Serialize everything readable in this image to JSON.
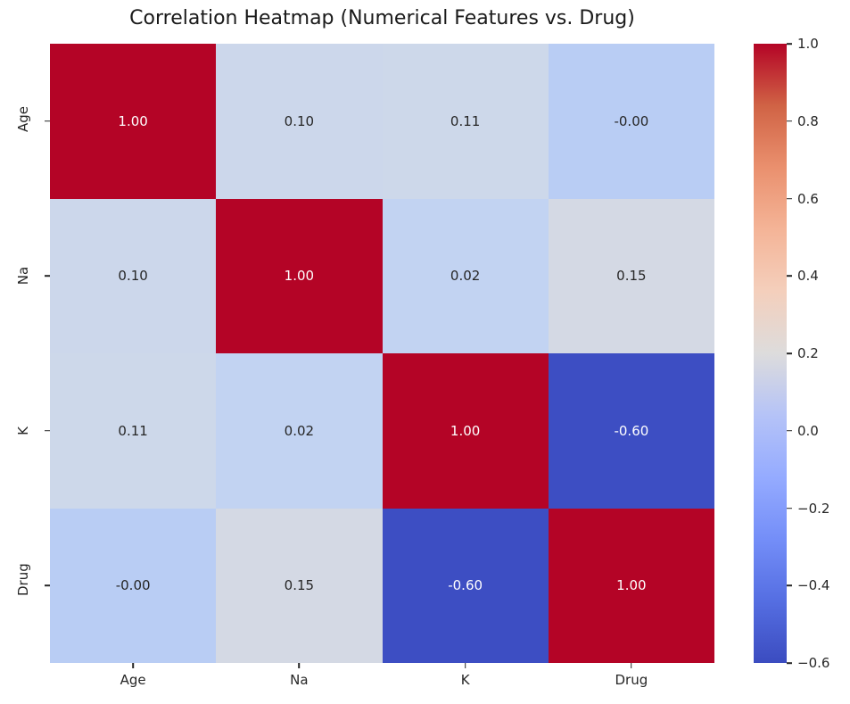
{
  "title": "Correlation Heatmap (Numerical Features vs. Drug)",
  "colors": {
    "background": "#ffffff",
    "axis_text": "#262626",
    "annotation_dark": "#262626",
    "annotation_light": "#ffffff",
    "strong_positive": "#b40426",
    "strong_negative": "#3d4ec3"
  },
  "chart_data": {
    "type": "heatmap",
    "title": "Correlation Heatmap (Numerical Features vs. Drug)",
    "x_labels": [
      "Age",
      "Na",
      "K",
      "Drug"
    ],
    "y_labels": [
      "Age",
      "Na",
      "K",
      "Drug"
    ],
    "matrix": [
      [
        1.0,
        0.1,
        0.11,
        -0.0
      ],
      [
        0.1,
        1.0,
        0.02,
        0.15
      ],
      [
        0.11,
        0.02,
        1.0,
        -0.6
      ],
      [
        -0.0,
        0.15,
        -0.6,
        1.0
      ]
    ],
    "cell_labels": [
      [
        "1.00",
        "0.10",
        "0.11",
        "-0.00"
      ],
      [
        "0.10",
        "1.00",
        "0.02",
        "0.15"
      ],
      [
        "0.11",
        "0.02",
        "1.00",
        "-0.60"
      ],
      [
        "-0.00",
        "0.15",
        "-0.60",
        "1.00"
      ]
    ],
    "cell_colors": [
      [
        "#b40426",
        "#ccd7eb",
        "#cdd8ea",
        "#b9cdf4"
      ],
      [
        "#ccd7eb",
        "#b40426",
        "#c2d3f2",
        "#d4d9e4"
      ],
      [
        "#cdd8ea",
        "#c2d3f2",
        "#b40426",
        "#3d4ec3"
      ],
      [
        "#b9cdf4",
        "#d4d9e4",
        "#3d4ec3",
        "#b40426"
      ]
    ],
    "cell_text_colors": [
      [
        "#ffffff",
        "#262626",
        "#262626",
        "#262626"
      ],
      [
        "#262626",
        "#ffffff",
        "#262626",
        "#262626"
      ],
      [
        "#262626",
        "#262626",
        "#ffffff",
        "#ffffff"
      ],
      [
        "#262626",
        "#262626",
        "#ffffff",
        "#ffffff"
      ]
    ],
    "colormap": "coolwarm",
    "vmin": -0.6,
    "vmax": 1.0,
    "grid": false,
    "colorbar": {
      "position": "right",
      "tick_labels": [
        "1.0",
        "0.8",
        "0.6",
        "0.4",
        "0.2",
        "0.0",
        "−0.2",
        "−0.4",
        "−0.6"
      ],
      "gradient_stops_bottom_to_top": [
        "#3b4cc0",
        "#556ee2",
        "#748ef8",
        "#95abff",
        "#b5c3f7",
        "#dddcdc",
        "#f4cfbc",
        "#f4b497",
        "#ea906e",
        "#d06345",
        "#b40426"
      ]
    }
  }
}
